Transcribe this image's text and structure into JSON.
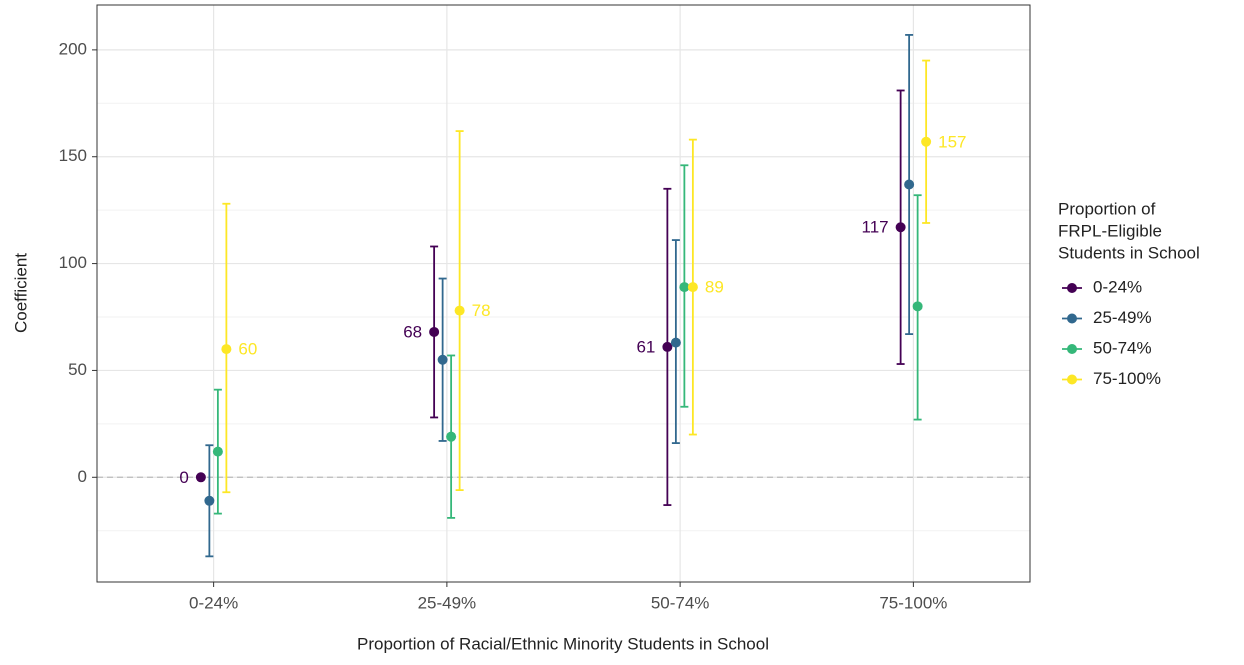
{
  "chart_data": {
    "type": "errorbar",
    "x_label": "Proportion of Racial/Ethnic Minority Students in School",
    "y_label": "Coefficient",
    "categories": [
      "0-24%",
      "25-49%",
      "50-74%",
      "75-100%"
    ],
    "ylim": [
      -49,
      221
    ],
    "yticks": [
      0,
      50,
      100,
      150,
      200
    ],
    "yminor": [
      -25,
      25,
      75,
      125,
      175
    ],
    "grid": true,
    "hline": 0,
    "legend_title": [
      "Proportion of",
      "FRPL-Eligible",
      "Students in School"
    ],
    "legend": "right",
    "series": [
      {
        "name": "0-24%",
        "color": "#440154",
        "values": [
          0,
          68,
          61,
          117
        ],
        "lower": [
          null,
          28,
          -13,
          53
        ],
        "upper": [
          null,
          108,
          135,
          181
        ],
        "labels": "left"
      },
      {
        "name": "25-49%",
        "color": "#31688e",
        "values": [
          -11,
          55,
          63,
          137
        ],
        "lower": [
          -37,
          17,
          16,
          67
        ],
        "upper": [
          15,
          93,
          111,
          207
        ]
      },
      {
        "name": "50-74%",
        "color": "#35b779",
        "values": [
          12,
          19,
          89,
          80
        ],
        "lower": [
          -17,
          -19,
          33,
          27
        ],
        "upper": [
          41,
          57,
          146,
          132
        ]
      },
      {
        "name": "75-100%",
        "color": "#fde725",
        "values": [
          60,
          78,
          89,
          157
        ],
        "lower": [
          -7,
          -6,
          20,
          119
        ],
        "upper": [
          128,
          162,
          158,
          195
        ],
        "labels": "right"
      }
    ]
  }
}
